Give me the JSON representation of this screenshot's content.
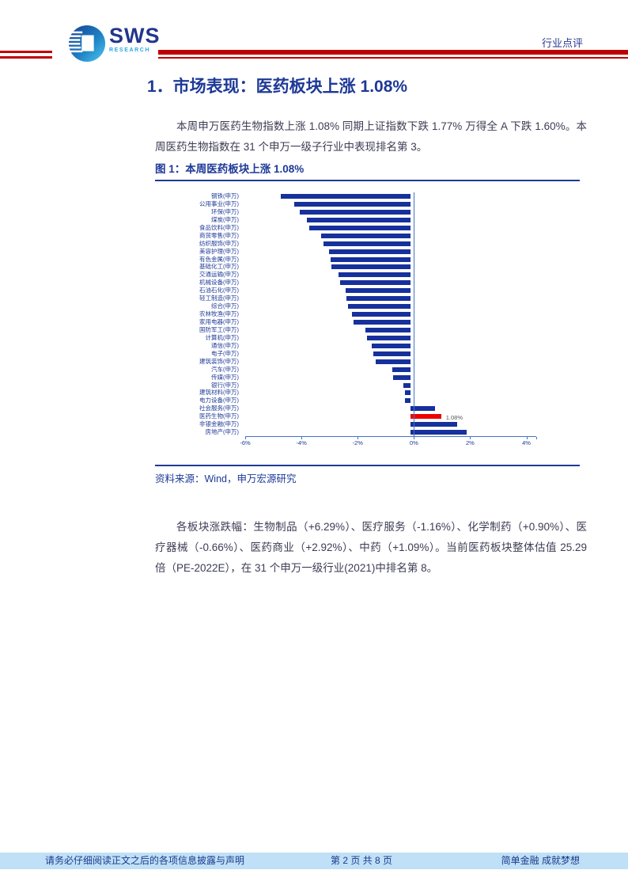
{
  "header": {
    "logo_text": "SWS",
    "logo_sub": "RESEARCH",
    "doc_type": "行业点评"
  },
  "section": {
    "title": "1．市场表现：医药板块上涨 1.08%",
    "para1": "本周申万医药生物指数上涨 1.08% 同期上证指数下跌 1.77% 万得全 A 下跌 1.60%。本周医药生物指数在 31 个申万一级子行业中表现排名第 3。",
    "para2": "各板块涨跌幅：生物制品（+6.29%）、医疗服务（-1.16%）、化学制药（+0.90%）、医疗器械（-0.66%）、医药商业（+2.92%）、中药（+1.09%）。当前医药板块整体估值 25.29 倍（PE-2022E），在 31 个申万一级行业(2021)中排名第 8。"
  },
  "figure": {
    "caption": "图 1：本周医药板块上涨 1.08%",
    "source": "资料来源：Wind，申万宏源研究"
  },
  "chart_data": {
    "type": "bar",
    "orientation": "horizontal",
    "title": "本周医药板块上涨 1.08%",
    "categories": [
      "钢铁(申万)",
      "公用事业(申万)",
      "环保(申万)",
      "煤炭(申万)",
      "食品饮料(申万)",
      "商贸零售(申万)",
      "纺织服饰(申万)",
      "美容护理(申万)",
      "有色金属(申万)",
      "基础化工(申万)",
      "交通运输(申万)",
      "机械设备(申万)",
      "石油石化(申万)",
      "轻工制造(申万)",
      "综合(申万)",
      "农林牧渔(申万)",
      "家用电器(申万)",
      "国防军工(申万)",
      "计算机(申万)",
      "通信(申万)",
      "电子(申万)",
      "建筑装饰(申万)",
      "汽车(申万)",
      "传媒(申万)",
      "银行(申万)",
      "建筑材料(申万)",
      "电力设备(申万)",
      "社会服务(申万)",
      "医药生物(申万)",
      "非银金融(申万)",
      "房地产(申万)"
    ],
    "values": [
      -4.62,
      -4.15,
      -3.95,
      -3.7,
      -3.62,
      -3.2,
      -3.1,
      -2.9,
      -2.86,
      -2.82,
      -2.56,
      -2.5,
      -2.32,
      -2.28,
      -2.22,
      -2.1,
      -2.04,
      -1.62,
      -1.55,
      -1.38,
      -1.34,
      -1.25,
      -0.66,
      -0.64,
      -0.26,
      -0.22,
      -0.2,
      0.85,
      1.08,
      1.65,
      1.98
    ],
    "bar_color": "#16309c",
    "highlight_category": "医药生物(申万)",
    "highlight_color": "#ee0000",
    "data_label": {
      "category": "医药生物(申万)",
      "text": "1.08%"
    },
    "x_ticks": [
      "-6%",
      "-4%",
      "-2%",
      "0%",
      "2%",
      "4%"
    ],
    "tick_values": [
      -6,
      -4,
      -2,
      0,
      2,
      4
    ],
    "xlim": [
      -6,
      4.35
    ],
    "axis_color": "#4472c4",
    "grid": false,
    "legend": "none"
  },
  "footer": {
    "disclaimer": "请务必仔细阅读正文之后的各项信息披露与声明",
    "page": "第 2 页 共 8 页",
    "slogan": "简单金融 成就梦想"
  },
  "colors": {
    "accent_red": "#c00000",
    "navy": "#1d3996",
    "footer_bg": "#bfe0f6",
    "logo_blue": "#21368c",
    "logo_cyan": "#29aae1"
  }
}
